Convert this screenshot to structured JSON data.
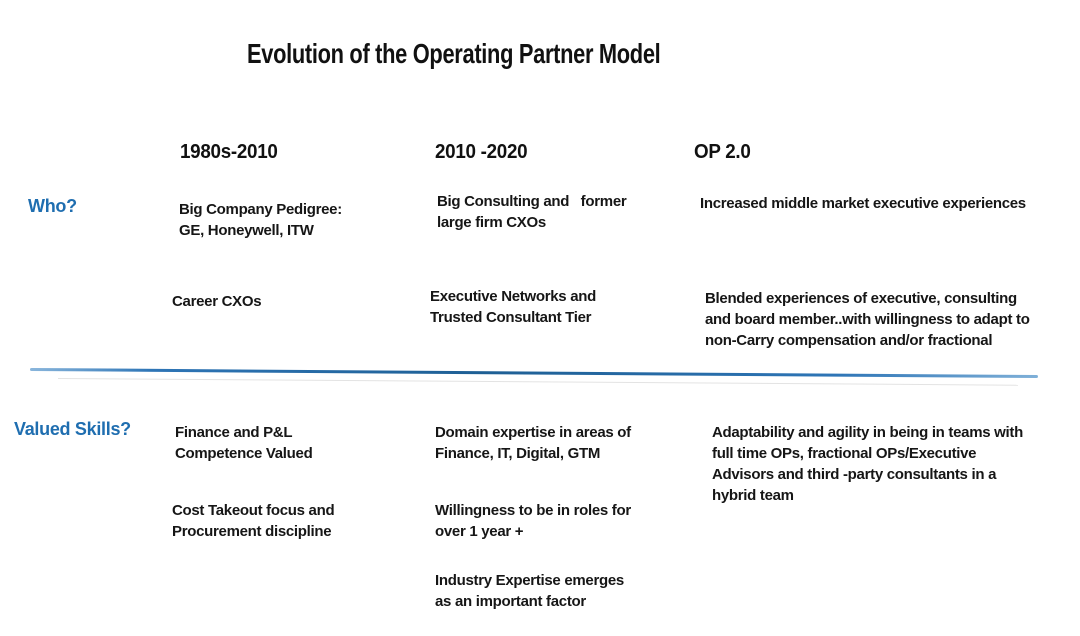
{
  "title": "Evolution of the Operating Partner Model",
  "table": {
    "column_headers": [
      "1980s-2010",
      "2010 -2020",
      "OP 2.0"
    ],
    "sections": [
      {
        "label": "Who?",
        "columns": [
          {
            "items": [
              "Big Company Pedigree:\nGE, Honeywell, ITW",
              "Career CXOs"
            ]
          },
          {
            "items": [
              "Big Consulting and   former\nlarge firm CXOs",
              "Executive Networks and\nTrusted Consultant Tier"
            ]
          },
          {
            "items": [
              "Increased middle market executive experiences",
              "Blended experiences of executive, consulting\nand board member..with willingness to adapt to\nnon-Carry compensation and/or fractional"
            ]
          }
        ]
      },
      {
        "label": "Valued Skills?",
        "columns": [
          {
            "items": [
              "Finance and P&L\nCompetence Valued",
              "Cost Takeout focus and\nProcurement discipline"
            ]
          },
          {
            "items": [
              "Domain expertise in areas of\nFinance, IT, Digital, GTM",
              "Willingness to be in roles for\nover 1 year +",
              "Industry Expertise emerges\nas an important factor"
            ]
          },
          {
            "items": [
              "Adaptability and agility in being in teams with\nfull time OPs, fractional OPs/Executive\nAdvisors and third -party consultants in a\nhybrid team"
            ]
          }
        ]
      }
    ]
  },
  "colors": {
    "accent_blue": "#1f6eb0",
    "divider_blue": "#2e75b6",
    "text": "#1b1b1b",
    "background": "#ffffff"
  }
}
